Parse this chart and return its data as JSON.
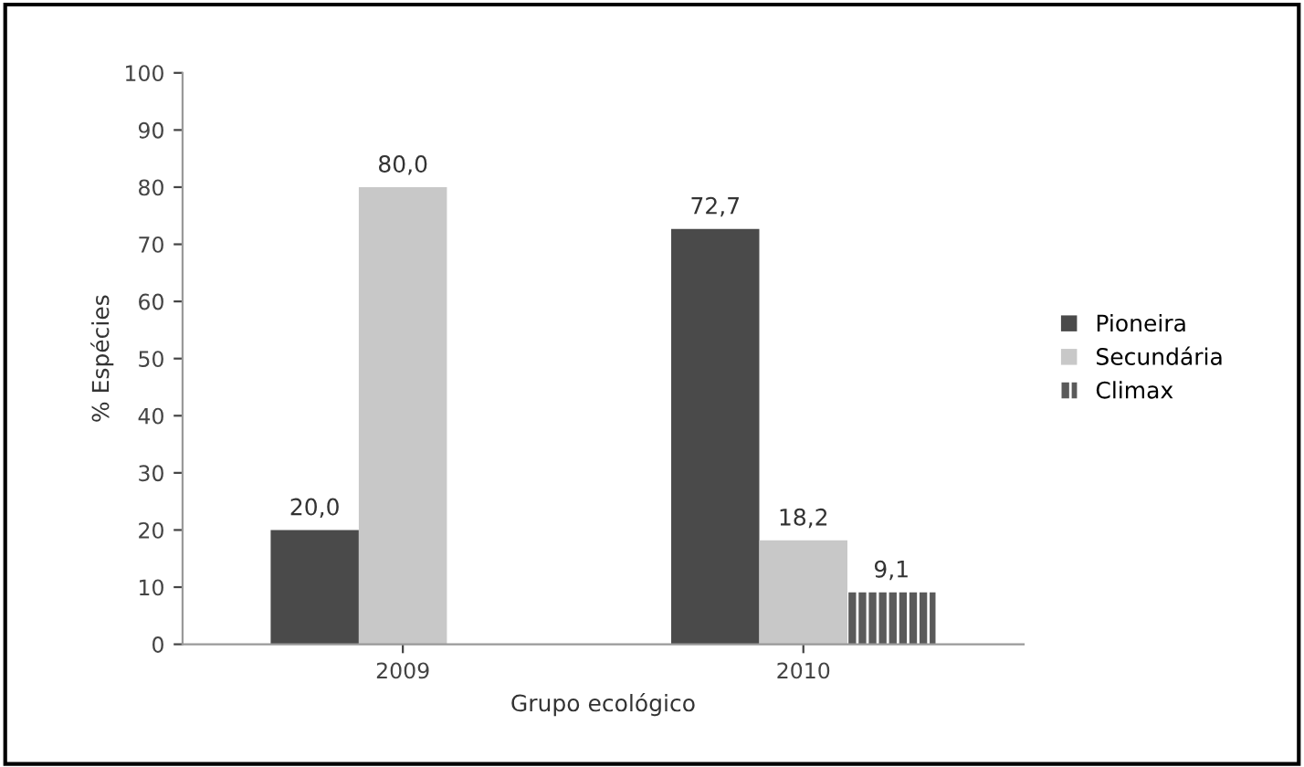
{
  "chart_data": {
    "type": "bar",
    "xlabel": "Grupo ecológico",
    "ylabel": "% Espécies",
    "categories": [
      "2009",
      "2010"
    ],
    "series": [
      {
        "name": "Pioneira",
        "color": "#4a4a4a",
        "values": [
          20.0,
          72.7
        ],
        "value_labels": [
          "20,0",
          "72,7"
        ]
      },
      {
        "name": "Secundária",
        "color": "#c8c8c8",
        "values": [
          80.0,
          18.2
        ],
        "value_labels": [
          "80,0",
          "18,2"
        ]
      },
      {
        "name": "Climax",
        "color": "#5a5a5a",
        "values": [
          null,
          9.1
        ],
        "value_labels": [
          null,
          "9,1"
        ]
      }
    ],
    "ylim": [
      0,
      100
    ],
    "yticks": [
      0,
      10,
      20,
      30,
      40,
      50,
      60,
      70,
      80,
      90,
      100
    ],
    "grid": false,
    "legend": "right"
  }
}
